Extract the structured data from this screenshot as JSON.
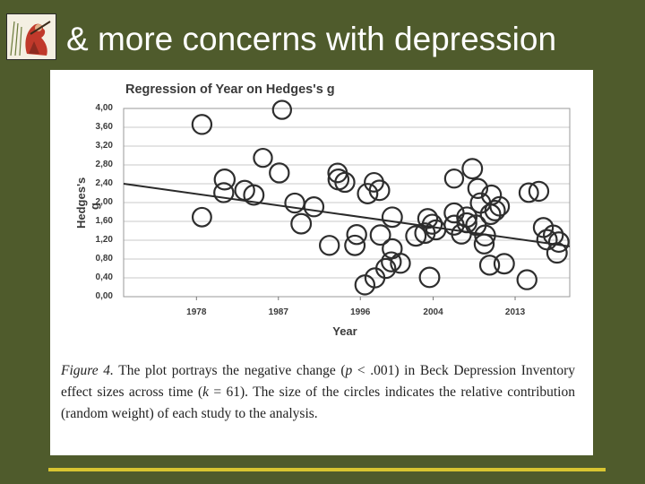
{
  "slide": {
    "title": "& more concerns with depression"
  },
  "caption": {
    "figure_label": "Figure 4.",
    "text_1": "The plot portrays the negative change (",
    "p_symbol": "p",
    "text_2": " < .001) in Beck Depression Inventory effect sizes across time (",
    "k_symbol": "k",
    "text_3": " = 61). The size of the circles indicates the relative contribution (random weight) of each study to the analysis."
  },
  "colors": {
    "background": "#4f5b2c",
    "panel": "#ffffff",
    "accent": "#d8c531",
    "ink": "#3a3a3a"
  },
  "chart_data": {
    "type": "scatter",
    "title": "Regression of Year on Hedges's g",
    "xlabel": "Year",
    "ylabel": "Hedges's g",
    "xlim": [
      1970,
      2019
    ],
    "ylim": [
      0,
      4
    ],
    "x_tick_labels": [
      "1978",
      "1987",
      "1996",
      "2004",
      "2013"
    ],
    "x_ticks": [
      1978,
      1987,
      1996,
      2004,
      2013
    ],
    "y_tick_labels": [
      "0,00",
      "0,40",
      "0,80",
      "1,20",
      "1,60",
      "2,00",
      "2,40",
      "2,80",
      "3,20",
      "3,60",
      "4,00"
    ],
    "y_ticks": [
      0,
      0.4,
      0.8,
      1.2,
      1.6,
      2.0,
      2.4,
      2.8,
      3.2,
      3.6,
      4.0
    ],
    "grid": true,
    "regression_line": {
      "x": [
        1970,
        2019
      ],
      "y": [
        2.4,
        1.07
      ]
    },
    "points": [
      {
        "x": 1978.6,
        "y": 3.66,
        "w": 1
      },
      {
        "x": 1978.6,
        "y": 1.69,
        "w": 0.9
      },
      {
        "x": 1981.1,
        "y": 2.49,
        "w": 1.2
      },
      {
        "x": 1981,
        "y": 2.21,
        "w": 1
      },
      {
        "x": 1983.3,
        "y": 2.26,
        "w": 1
      },
      {
        "x": 1984.3,
        "y": 2.16,
        "w": 1.1
      },
      {
        "x": 1985.3,
        "y": 2.95,
        "w": 0.8
      },
      {
        "x": 1987.4,
        "y": 3.97,
        "w": 0.8
      },
      {
        "x": 1987.1,
        "y": 2.63,
        "w": 1
      },
      {
        "x": 1988.8,
        "y": 1.99,
        "w": 1
      },
      {
        "x": 1989.5,
        "y": 1.55,
        "w": 1.1
      },
      {
        "x": 1990.9,
        "y": 1.91,
        "w": 1
      },
      {
        "x": 1992.6,
        "y": 1.09,
        "w": 1
      },
      {
        "x": 1993.5,
        "y": 2.63,
        "w": 0.9
      },
      {
        "x": 1993.6,
        "y": 2.49,
        "w": 1.2
      },
      {
        "x": 1994.3,
        "y": 2.43,
        "w": 1
      },
      {
        "x": 1995.6,
        "y": 1.32,
        "w": 1
      },
      {
        "x": 1995.4,
        "y": 1.09,
        "w": 1.1
      },
      {
        "x": 1996.8,
        "y": 2.19,
        "w": 1.1
      },
      {
        "x": 1998.1,
        "y": 2.26,
        "w": 1.1
      },
      {
        "x": 1997.5,
        "y": 2.43,
        "w": 0.9
      },
      {
        "x": 1998.2,
        "y": 1.31,
        "w": 1.1
      },
      {
        "x": 1996.5,
        "y": 0.25,
        "w": 1
      },
      {
        "x": 1997.6,
        "y": 0.4,
        "w": 1
      },
      {
        "x": 1999.5,
        "y": 1.69,
        "w": 1.1
      },
      {
        "x": 1999.5,
        "y": 1.02,
        "w": 1
      },
      {
        "x": 1999.4,
        "y": 0.74,
        "w": 1
      },
      {
        "x": 1998.8,
        "y": 0.6,
        "w": 1
      },
      {
        "x": 2000.4,
        "y": 0.71,
        "w": 1
      },
      {
        "x": 2002.1,
        "y": 1.29,
        "w": 1.1
      },
      {
        "x": 2003.1,
        "y": 1.35,
        "w": 1.1
      },
      {
        "x": 2003.4,
        "y": 1.66,
        "w": 1
      },
      {
        "x": 2003.9,
        "y": 1.54,
        "w": 1
      },
      {
        "x": 2003.6,
        "y": 0.41,
        "w": 1.1
      },
      {
        "x": 2004.3,
        "y": 1.42,
        "w": 1
      },
      {
        "x": 2006.3,
        "y": 2.51,
        "w": 0.8
      },
      {
        "x": 2006.3,
        "y": 1.78,
        "w": 1
      },
      {
        "x": 2006.3,
        "y": 1.52,
        "w": 1
      },
      {
        "x": 2007.7,
        "y": 1.69,
        "w": 1.1
      },
      {
        "x": 2007.1,
        "y": 1.33,
        "w": 1
      },
      {
        "x": 2007.7,
        "y": 1.57,
        "w": 1
      },
      {
        "x": 2008.7,
        "y": 1.52,
        "w": 1.1
      },
      {
        "x": 2008.3,
        "y": 2.72,
        "w": 1.1
      },
      {
        "x": 2008.9,
        "y": 2.3,
        "w": 1
      },
      {
        "x": 2009.2,
        "y": 1.99,
        "w": 1.1
      },
      {
        "x": 2009.6,
        "y": 1.12,
        "w": 1
      },
      {
        "x": 2009.7,
        "y": 1.3,
        "w": 1.2
      },
      {
        "x": 2010.3,
        "y": 1.75,
        "w": 1.1
      },
      {
        "x": 2010.8,
        "y": 1.83,
        "w": 1.1
      },
      {
        "x": 2010.4,
        "y": 2.16,
        "w": 1
      },
      {
        "x": 2010.2,
        "y": 0.67,
        "w": 1
      },
      {
        "x": 2011.3,
        "y": 1.92,
        "w": 0.9
      },
      {
        "x": 2011.8,
        "y": 0.7,
        "w": 1.1
      },
      {
        "x": 2014.5,
        "y": 2.21,
        "w": 0.9
      },
      {
        "x": 2015.6,
        "y": 2.24,
        "w": 1
      },
      {
        "x": 2016.1,
        "y": 1.47,
        "w": 1
      },
      {
        "x": 2016.5,
        "y": 1.21,
        "w": 1.1
      },
      {
        "x": 2017.8,
        "y": 1.16,
        "w": 1.1
      },
      {
        "x": 2017.2,
        "y": 1.31,
        "w": 1
      },
      {
        "x": 2017.6,
        "y": 0.93,
        "w": 1.1
      },
      {
        "x": 2014.3,
        "y": 0.36,
        "w": 1
      }
    ]
  }
}
